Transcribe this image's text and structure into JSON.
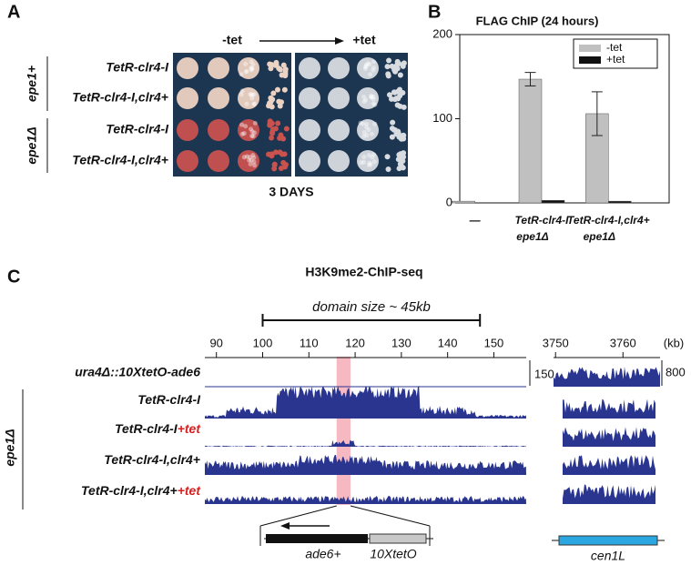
{
  "panel_labels": [
    "A",
    "B",
    "C"
  ],
  "panel_a": {
    "minus_tet": "-tet",
    "plus_tet": "+tet",
    "footer": "3 DAYS",
    "groups": [
      {
        "label": "epe1+",
        "rows": [
          "TetR-clr4-I",
          "TetR-clr4-I,clr4+"
        ]
      },
      {
        "label": "epe1Δ",
        "rows": [
          "TetR-clr4-I",
          "TetR-clr4-I,clr4+"
        ]
      }
    ]
  },
  "chart_data": {
    "type": "bar",
    "title": "FLAG ChIP (24 hours)",
    "categories": [
      "—",
      "TetR-clr4-I",
      "TetR-clr4-I,clr4+"
    ],
    "category_sublabels": [
      null,
      "epe1Δ",
      "epe1Δ"
    ],
    "series": [
      {
        "name": "-tet",
        "color": "#c0c0c0",
        "values": [
          2,
          147,
          106
        ],
        "errors": [
          null,
          8,
          26
        ]
      },
      {
        "name": "+tet",
        "color": "#111111",
        "values": [
          0,
          3,
          2
        ]
      }
    ],
    "ylim": [
      0,
      200
    ],
    "yticks": [
      0,
      100,
      200
    ],
    "legend": "upper right"
  },
  "panel_c": {
    "title": "H3K9me2-ChIP-seq",
    "domain_label": "domain size ~ 45kb",
    "domain_range": [
      100,
      147
    ],
    "xlim": [
      87.5,
      157
    ],
    "xticks": [
      90,
      100,
      110,
      120,
      130,
      140,
      150
    ],
    "x2lim": [
      3749.7,
      3765.5
    ],
    "x2ticks": [
      3750,
      3760
    ],
    "unit": "(kb)",
    "highlight": [
      116,
      119
    ],
    "reference_track": "ura4Δ::10XtetO-ade6",
    "scale_left": 150,
    "scale_right": 800,
    "group": "epe1Δ",
    "tracks": [
      {
        "label": "TetR-clr4-I"
      },
      {
        "label": "TetR-clr4-I",
        "suffix": "+tet"
      },
      {
        "label": "TetR-clr4-I,clr4+"
      },
      {
        "label": "TetR-clr4-I,clr4+",
        "suffix": "+tet"
      }
    ],
    "genes": {
      "ade6": "ade6+",
      "teto": "10XtetO",
      "cen": "cen1L"
    }
  }
}
